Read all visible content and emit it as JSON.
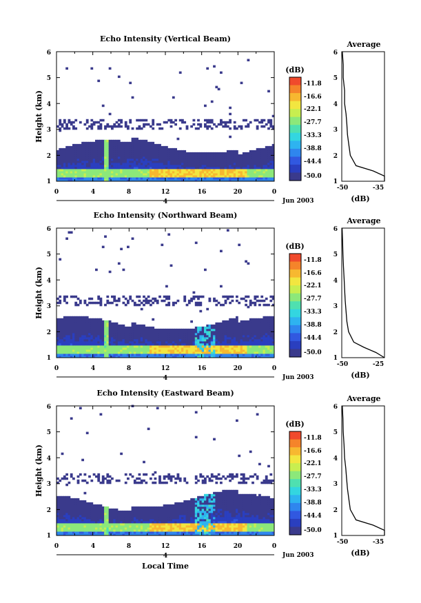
{
  "figure": {
    "shared": {
      "height_label": "Height (km)",
      "y_ticks": [
        "1",
        "2",
        "3",
        "4",
        "5",
        "6"
      ],
      "x_ticks": [
        "0",
        "4",
        "8",
        "12",
        "16",
        "20",
        "0"
      ],
      "day_label": "4",
      "date_label": "Jun 2003",
      "xlabel_bottom": "Local Time",
      "colorbar_unit": "(dB)",
      "colorbar_ticks": [
        "-11.8",
        "-16.6",
        "-22.1",
        "-27.7",
        "-33.3",
        "-38.8",
        "-44.4",
        "-50.0"
      ],
      "colorbar_colors": [
        "#3a3a8c",
        "#2a3fbf",
        "#3158e0",
        "#2f86ee",
        "#2eb3f0",
        "#33d6e0",
        "#4fe0b0",
        "#8ce87a",
        "#c8ee50",
        "#f2e640",
        "#f7b830",
        "#f5842a",
        "#f04a2c"
      ],
      "avg_title": "Average",
      "avg_xlabel": "(dB)"
    },
    "panels": [
      {
        "title": "Echo Intensity (Vertical Beam)",
        "avg_xticks": [
          "-50",
          "-35"
        ]
      },
      {
        "title": "Echo Intensity (Northward Beam)",
        "avg_xticks": [
          "-50",
          "-25"
        ]
      },
      {
        "title": "Echo Intensity (Eastward Beam)",
        "avg_xticks": [
          "-50",
          "-35"
        ]
      }
    ]
  },
  "chart_data": [
    {
      "type": "heatmap",
      "title": "Echo Intensity (Vertical Beam)",
      "xlabel": "",
      "ylabel": "Height (km)",
      "xlim": [
        0,
        24
      ],
      "ylim": [
        1,
        6
      ],
      "colorbar_label": "(dB)",
      "colorbar_range": [
        -50.0,
        -11.8
      ],
      "profile": {
        "title": "Average",
        "xlabel": "(dB)",
        "xlim": [
          -50,
          -35
        ],
        "height": [
          1.0,
          1.2,
          1.4,
          1.6,
          2.0,
          2.4,
          2.8,
          3.2,
          3.6,
          4.0,
          4.5,
          5.0,
          5.5,
          6.0
        ],
        "values": [
          -20,
          -33,
          -39,
          -45,
          -47,
          -47.5,
          -48,
          -48.2,
          -48.5,
          -49,
          -49,
          -49.5,
          -49.5,
          -49.8
        ]
      }
    },
    {
      "type": "heatmap",
      "title": "Echo Intensity (Northward Beam)",
      "xlabel": "",
      "ylabel": "Height (km)",
      "xlim": [
        0,
        24
      ],
      "ylim": [
        1,
        6
      ],
      "colorbar_label": "(dB)",
      "colorbar_range": [
        -50.0,
        -11.8
      ],
      "profile": {
        "title": "Average",
        "xlabel": "(dB)",
        "xlim": [
          -50,
          -25
        ],
        "height": [
          1.0,
          1.2,
          1.4,
          1.6,
          2.0,
          2.4,
          2.8,
          3.2,
          3.6,
          4.0,
          4.5,
          5.0,
          5.5,
          6.0
        ],
        "values": [
          -20,
          -30,
          -37,
          -43,
          -46,
          -47,
          -47.5,
          -48,
          -48.3,
          -48.6,
          -49,
          -49.3,
          -49.5,
          -49.8
        ]
      }
    },
    {
      "type": "heatmap",
      "title": "Echo Intensity (Eastward Beam)",
      "xlabel": "Local Time",
      "ylabel": "Height (km)",
      "xlim": [
        0,
        24
      ],
      "ylim": [
        1,
        6
      ],
      "colorbar_label": "(dB)",
      "colorbar_range": [
        -50.0,
        -11.8
      ],
      "profile": {
        "title": "Average",
        "xlabel": "(dB)",
        "xlim": [
          -50,
          -35
        ],
        "height": [
          1.0,
          1.2,
          1.4,
          1.6,
          2.0,
          2.4,
          2.8,
          3.2,
          3.6,
          4.0,
          4.5,
          5.0,
          5.5,
          6.0
        ],
        "values": [
          -20,
          -33,
          -39,
          -45,
          -47,
          -47.5,
          -48,
          -48.3,
          -48.6,
          -49,
          -49.2,
          -49.5,
          -49.6,
          -49.8
        ]
      }
    }
  ]
}
